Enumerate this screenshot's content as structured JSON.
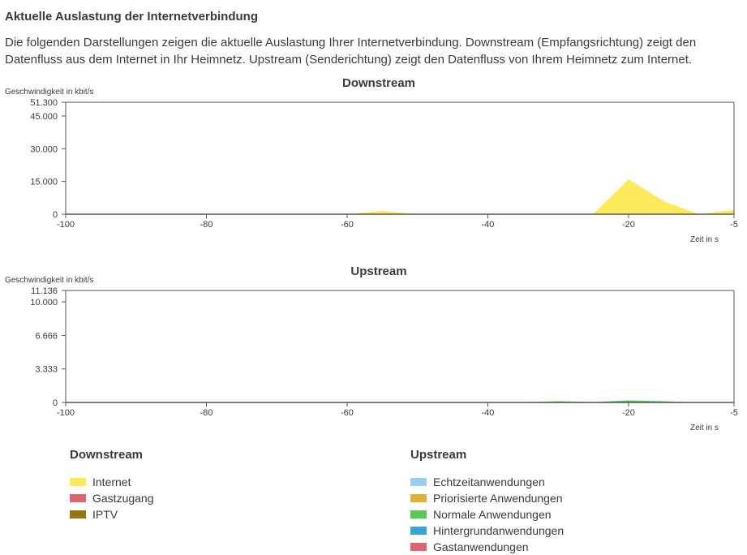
{
  "page": {
    "title": "Aktuelle Auslastung der Internetverbindung",
    "description": "Die folgenden Darstellungen zeigen die aktuelle Auslastung Ihrer Internetverbindung. Downstream (Empfangsrichtung) zeigt den Datenfluss aus dem Internet in Ihr Heimnetz. Upstream (Senderichtung) zeigt den Datenfluss von Ihrem Heimnetz zum Internet."
  },
  "chart_data": [
    {
      "type": "area",
      "title": "Downstream",
      "ylabel": "Geschwindigkeit in kbit/s",
      "xlabel": "Zeit in s",
      "xlim": [
        -100,
        -5
      ],
      "ylim": [
        0,
        51300
      ],
      "x_ticks": [
        -100,
        -80,
        -60,
        -40,
        -20,
        -5
      ],
      "x_tick_labels": [
        "-100",
        "-80",
        "-60",
        "-40",
        "-20",
        "-5"
      ],
      "y_ticks": [
        0,
        15000,
        30000,
        45000,
        51300
      ],
      "y_tick_labels": [
        "0",
        "15.000",
        "30.000",
        "45.000",
        "51.300"
      ],
      "grid": false,
      "series": [
        {
          "name": "Internet",
          "color": "#fde95b",
          "x": [
            -100,
            -95,
            -90,
            -85,
            -80,
            -75,
            -70,
            -65,
            -60,
            -55,
            -50,
            -45,
            -40,
            -35,
            -30,
            -25,
            -20,
            -15,
            -10,
            -5
          ],
          "values": [
            0,
            0,
            0,
            0,
            0,
            100,
            200,
            100,
            0,
            1500,
            0,
            0,
            0,
            0,
            200,
            200,
            16000,
            6000,
            0,
            2000
          ]
        },
        {
          "name": "Gastzugang",
          "color": "#e06470",
          "x": [
            -100,
            -5
          ],
          "values": [
            0,
            0
          ]
        },
        {
          "name": "IPTV",
          "color": "#9a7410",
          "x": [
            -100,
            -5
          ],
          "values": [
            0,
            0
          ]
        }
      ]
    },
    {
      "type": "area",
      "title": "Upstream",
      "ylabel": "Geschwindigkeit in kbit/s",
      "xlabel": "Zeit in s",
      "xlim": [
        -100,
        -5
      ],
      "ylim": [
        0,
        11136
      ],
      "x_ticks": [
        -100,
        -80,
        -60,
        -40,
        -20,
        -5
      ],
      "x_tick_labels": [
        "-100",
        "-80",
        "-60",
        "-40",
        "-20",
        "-5"
      ],
      "y_ticks": [
        0,
        3333,
        6666,
        10000,
        11136
      ],
      "y_tick_labels": [
        "0",
        "3.333",
        "6.666",
        "10.000",
        "11.136"
      ],
      "grid": false,
      "series": [
        {
          "name": "Echtzeitanwendungen",
          "color": "#99cdf2",
          "x": [
            -100,
            -5
          ],
          "values": [
            0,
            0
          ]
        },
        {
          "name": "Priorisierte Anwendungen",
          "color": "#e1b133",
          "x": [
            -100,
            -5
          ],
          "values": [
            0,
            0
          ]
        },
        {
          "name": "Normale Anwendungen",
          "color": "#59c853",
          "x": [
            -100,
            -95,
            -90,
            -85,
            -80,
            -75,
            -70,
            -65,
            -60,
            -55,
            -50,
            -45,
            -40,
            -35,
            -30,
            -25,
            -20,
            -15,
            -10,
            -5
          ],
          "values": [
            0,
            0,
            20,
            0,
            0,
            20,
            40,
            20,
            0,
            20,
            0,
            0,
            0,
            20,
            120,
            40,
            200,
            120,
            0,
            20
          ]
        },
        {
          "name": "Hintergrundanwendungen",
          "color": "#3ba3d6",
          "x": [
            -100,
            -5
          ],
          "values": [
            0,
            0
          ]
        },
        {
          "name": "Gastanwendungen",
          "color": "#e06470",
          "x": [
            -100,
            -5
          ],
          "values": [
            0,
            0
          ]
        }
      ]
    }
  ],
  "legends": {
    "downstream": {
      "title": "Downstream",
      "items": [
        {
          "label": "Internet",
          "color": "#fde95b"
        },
        {
          "label": "Gastzugang",
          "color": "#e06470"
        },
        {
          "label": "IPTV",
          "color": "#9a7410"
        }
      ]
    },
    "upstream": {
      "title": "Upstream",
      "items": [
        {
          "label": "Echtzeitanwendungen",
          "color": "#99cdf2"
        },
        {
          "label": "Priorisierte Anwendungen",
          "color": "#e1b133"
        },
        {
          "label": "Normale Anwendungen",
          "color": "#59c853"
        },
        {
          "label": "Hintergrundanwendungen",
          "color": "#3ba3d6"
        },
        {
          "label": "Gastanwendungen",
          "color": "#e06470"
        }
      ]
    }
  }
}
